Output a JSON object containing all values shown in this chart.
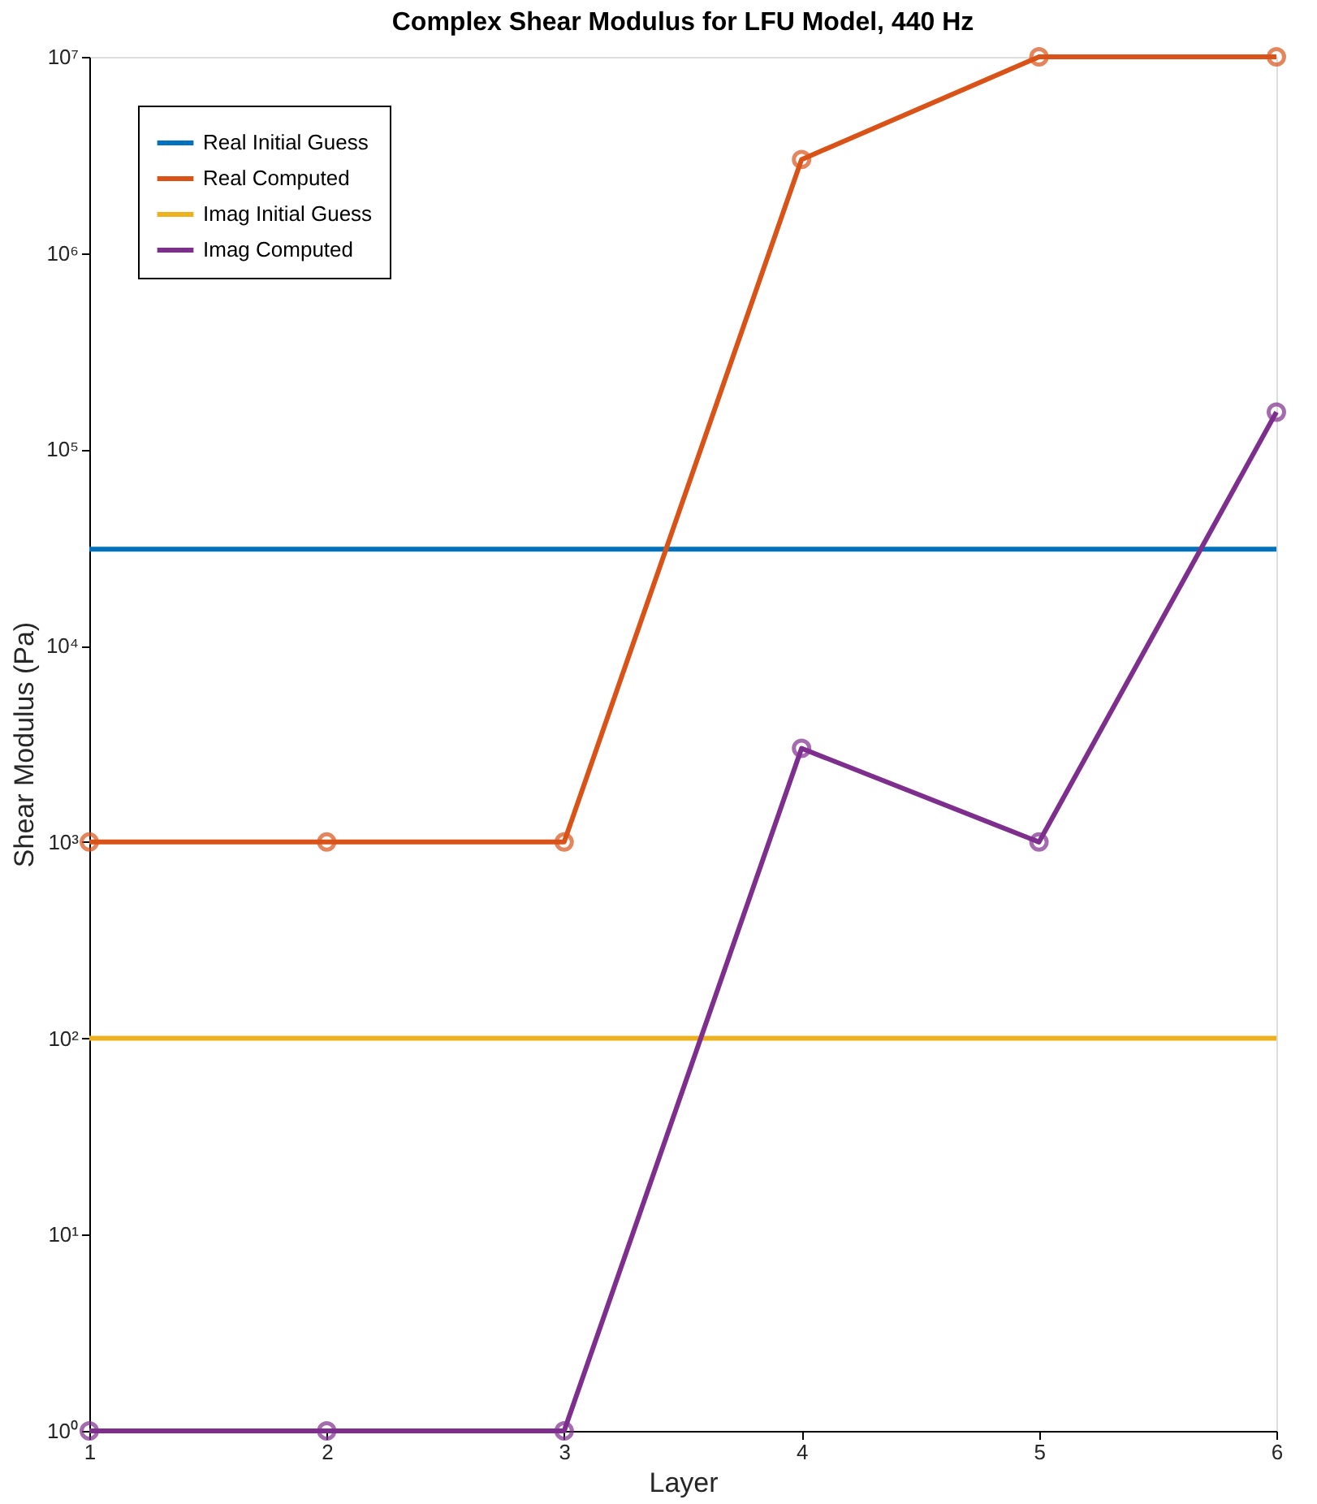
{
  "chart_data": {
    "type": "line",
    "title": "Complex Shear Modulus for LFU Model, 440 Hz",
    "xlabel": "Layer",
    "ylabel": "Shear Modulus (Pa)",
    "x": [
      1,
      2,
      3,
      4,
      5,
      6
    ],
    "series": [
      {
        "name": "Real Initial Guess",
        "color": "#0072bd",
        "marker": "none",
        "values": [
          31000,
          31000,
          31000,
          31000,
          31000,
          31000
        ]
      },
      {
        "name": "Real Computed",
        "color": "#d95319",
        "marker": "circle",
        "values": [
          1000,
          1000,
          1000,
          3000000,
          10000000,
          10000000
        ]
      },
      {
        "name": "Imag Initial Guess",
        "color": "#edb120",
        "marker": "none",
        "values": [
          100,
          100,
          100,
          100,
          100,
          100
        ]
      },
      {
        "name": "Imag Computed",
        "color": "#7e2f8e",
        "marker": "circle",
        "values": [
          1,
          1,
          1,
          3000,
          1000,
          155000
        ]
      }
    ],
    "log": "y",
    "xlim": [
      1,
      6
    ],
    "xticks": [
      1,
      2,
      3,
      4,
      5,
      6
    ],
    "ylim": [
      1,
      10000000
    ],
    "yticks": [
      {
        "value": 1,
        "label": "10⁰"
      },
      {
        "value": 10,
        "label": "10¹"
      },
      {
        "value": 100,
        "label": "10²"
      },
      {
        "value": 1000,
        "label": "10³"
      },
      {
        "value": 10000,
        "label": "10⁴"
      },
      {
        "value": 100000,
        "label": "10⁵"
      },
      {
        "value": 1000000,
        "label": "10⁶"
      },
      {
        "value": 10000000,
        "label": "10⁷"
      }
    ],
    "grid": false,
    "legend": "top left"
  }
}
